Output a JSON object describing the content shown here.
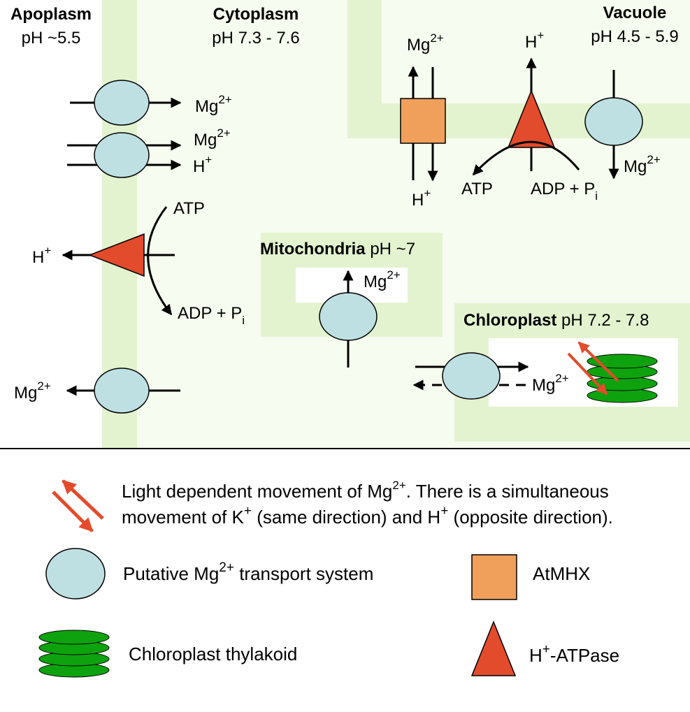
{
  "compartments": {
    "apoplasm": {
      "name": "Apoplasm",
      "ph": "pH ~5.5"
    },
    "cytoplasm": {
      "name": "Cytoplasm",
      "ph": "pH 7.3 - 7.6"
    },
    "vacuole": {
      "name": "Vacuole",
      "ph": "pH 4.5 - 5.9"
    },
    "mitochondria": {
      "name": "Mitochondria",
      "ph": " pH ~7"
    },
    "chloroplast": {
      "name": "Chloroplast",
      "ph": " pH 7.2 - 7.8"
    }
  },
  "ions": {
    "mg": "Mg",
    "mg_charge": "2+",
    "h": "H",
    "h_charge": "+",
    "atp": "ATP",
    "adp": "ADP + P",
    "adp_sub": "i"
  },
  "legend": {
    "light_1a": "Light dependent movement of Mg",
    "light_1b": "2+",
    "light_1c": ". There is a simultaneous",
    "light_2a": "movement of K",
    "light_2b": "+",
    "light_2c": " (same direction) and H",
    "light_2d": "+",
    "light_2e": " (opposite direction).",
    "transport_a": "Putative Mg",
    "transport_b": "2+",
    "transport_c": " transport system",
    "atmhx": "AtMHX",
    "thylakoid": "Chloroplast thylakoid",
    "atpase_a": "H",
    "atpase_b": "+",
    "atpase_c": "-ATPase"
  },
  "colors": {
    "membrane": "#e3f3cf",
    "cell_bg": "#f6fcef",
    "transporter": "#bfe0e3",
    "atmhx": "#f0a05a",
    "atpase": "#e24b2c",
    "thylakoid": "#0ea20e",
    "light_arrow": "#e24b2c"
  }
}
